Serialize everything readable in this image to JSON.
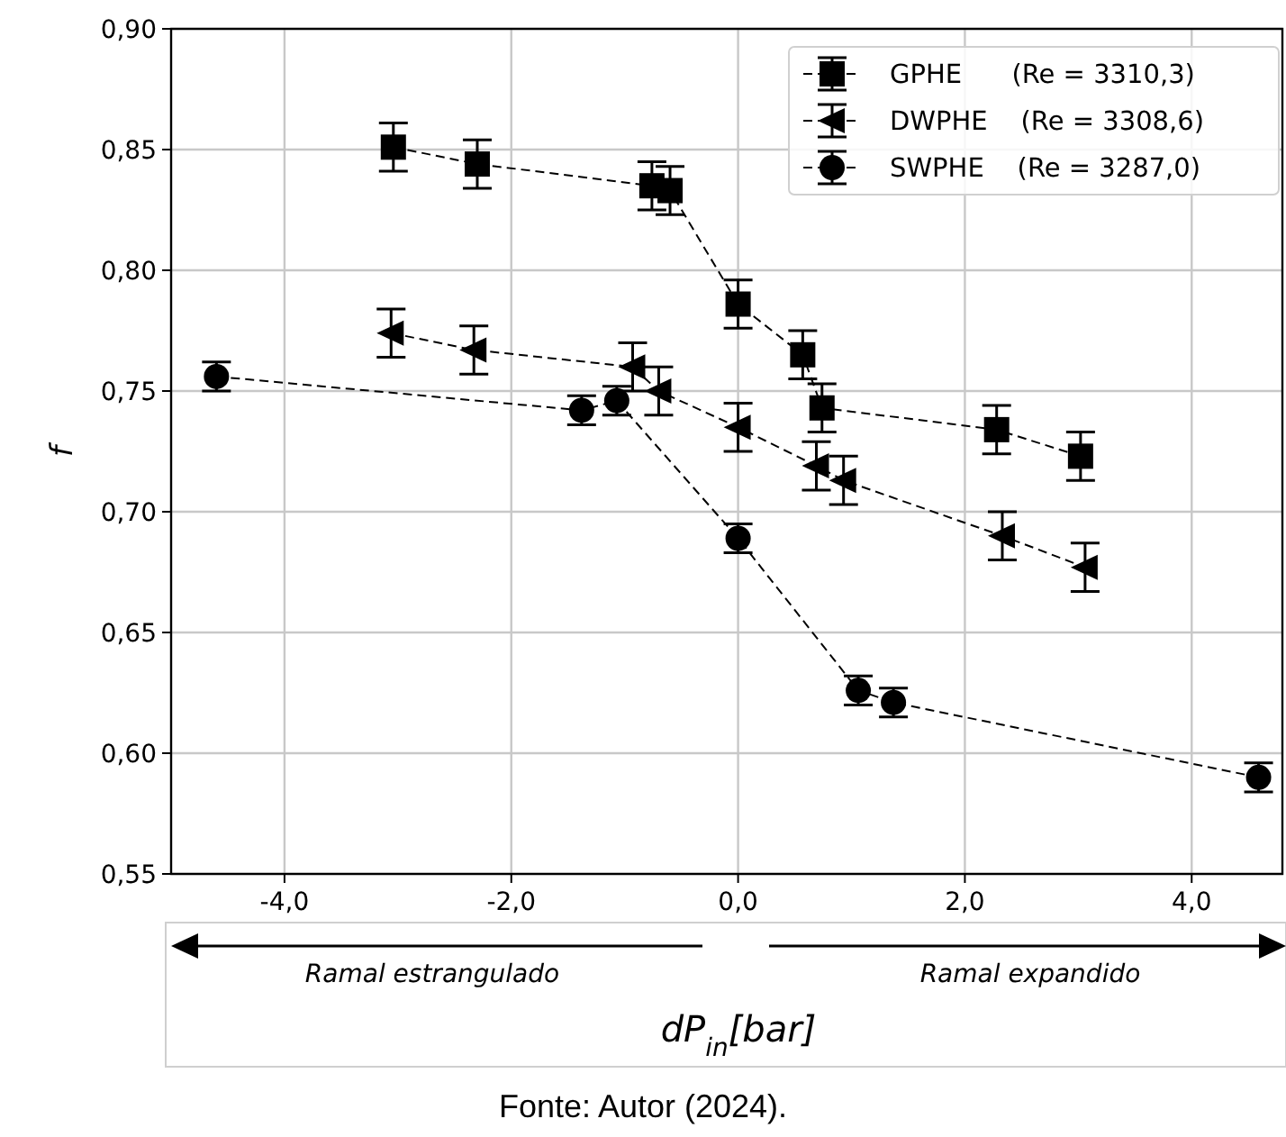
{
  "chart_data": {
    "type": "line",
    "xlabel": "dP$_{in}$[bar]",
    "ylabel": "f",
    "xlim": [
      -5.0,
      4.8
    ],
    "xticks": [
      {
        "value": -4,
        "label": "-4,0"
      },
      {
        "value": -2,
        "label": "-2,0"
      },
      {
        "value": 0,
        "label": "0,0"
      },
      {
        "value": 2,
        "label": "2,0"
      },
      {
        "value": 4,
        "label": "4,0"
      }
    ],
    "ylim": [
      0.55,
      0.9
    ],
    "yticks": [
      {
        "value": 0.55,
        "label": "0,55"
      },
      {
        "value": 0.6,
        "label": "0,60"
      },
      {
        "value": 0.65,
        "label": "0,65"
      },
      {
        "value": 0.7,
        "label": "0,70"
      },
      {
        "value": 0.75,
        "label": "0,75"
      },
      {
        "value": 0.8,
        "label": "0,80"
      },
      {
        "value": 0.85,
        "label": "0,85"
      },
      {
        "value": 0.9,
        "label": "0,90"
      }
    ],
    "grid": true,
    "legend": "top right",
    "line_style": "dashed",
    "series": [
      {
        "name": "GPHE      (Re = 3310,3)",
        "color": "#000000",
        "marker": "square",
        "x": [
          -3.04,
          -2.3,
          -0.76,
          -0.6,
          0.0,
          0.57,
          0.74,
          2.28,
          3.02
        ],
        "values": [
          0.851,
          0.844,
          0.835,
          0.833,
          0.786,
          0.765,
          0.743,
          0.734,
          0.723
        ],
        "errors": [
          0.01,
          0.01,
          0.01,
          0.01,
          0.01,
          0.01,
          0.01,
          0.01,
          0.01
        ]
      },
      {
        "name": "DWPHE    (Re = 3308,6)",
        "color": "#000000",
        "marker": "triangle",
        "x": [
          -3.06,
          -2.33,
          -0.93,
          -0.7,
          0.0,
          0.69,
          0.93,
          2.33,
          3.06
        ],
        "values": [
          0.774,
          0.767,
          0.76,
          0.75,
          0.735,
          0.719,
          0.713,
          0.69,
          0.677
        ],
        "errors": [
          0.01,
          0.01,
          0.01,
          0.01,
          0.01,
          0.01,
          0.01,
          0.01,
          0.01
        ]
      },
      {
        "name": "SWPHE    (Re = 3287,0)",
        "color": "#000000",
        "marker": "circle",
        "x": [
          -4.6,
          -1.38,
          -1.07,
          0.0,
          1.06,
          1.37,
          4.59
        ],
        "values": [
          0.756,
          0.742,
          0.746,
          0.689,
          0.626,
          0.621,
          0.59
        ],
        "errors": [
          0.006,
          0.006,
          0.006,
          0.006,
          0.006,
          0.006,
          0.006
        ]
      }
    ],
    "annotations": [
      "Ramal estrangulado",
      "Ramal expandido",
      "Fonte: Autor (2024)."
    ]
  }
}
